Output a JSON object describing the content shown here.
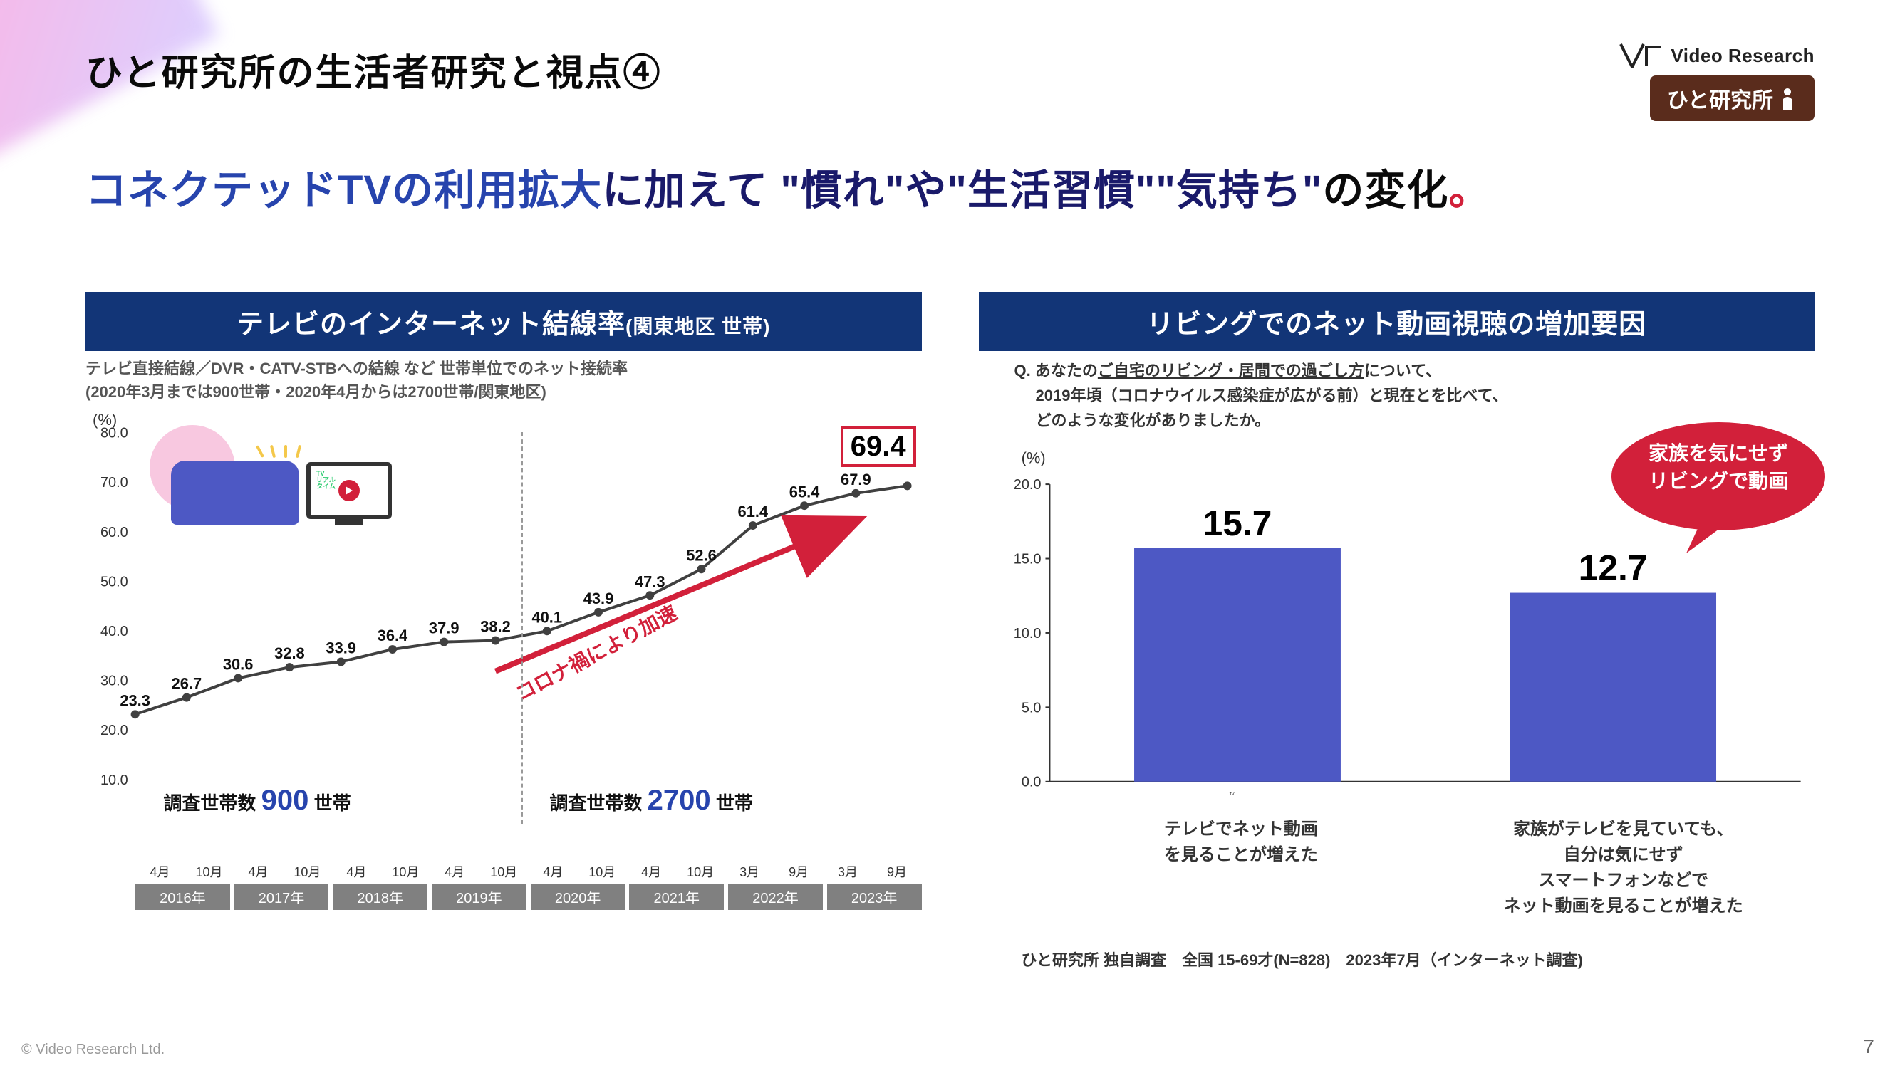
{
  "header": {
    "title": "ひと研究所の生活者研究と視点④",
    "vr_text": "Video Research",
    "hito_badge": "ひと研究所"
  },
  "headline": {
    "part1_blue": "コネクテッドTVの利用拡大",
    "part2_dark": "に加えて ",
    "quote1": "\"慣れ\"",
    "ya": "や",
    "quote2": "\"生活習慣\"",
    "quote3": "\"気持ち\"",
    "trail": "の変化",
    "period": "。"
  },
  "left": {
    "header_main": "テレビのインターネット結線率",
    "header_small": "(関東地区 世帯)",
    "subtitle_1": "テレビ直接結線／DVR・CATV-STBへの結線 など 世帯単位でのネット接続率",
    "subtitle_2": "(2020年3月までは900世帯・2020年4月からは2700世帯/関東地区)",
    "chart": {
      "type": "line",
      "y_axis_label": "(%)",
      "y_ticks": [
        10.0,
        20.0,
        30.0,
        40.0,
        50.0,
        60.0,
        70.0,
        80.0
      ],
      "ylim": [
        10.0,
        80.0
      ],
      "x_months": [
        "4月",
        "10月",
        "4月",
        "10月",
        "4月",
        "10月",
        "4月",
        "10月",
        "4月",
        "10月",
        "4月",
        "10月",
        "3月",
        "9月",
        "3月",
        "9月"
      ],
      "years": [
        "2016年",
        "2017年",
        "2018年",
        "2019年",
        "2020年",
        "2021年",
        "2022年",
        "2023年"
      ],
      "values": [
        23.3,
        26.7,
        30.6,
        32.8,
        33.9,
        36.4,
        37.9,
        38.2,
        40.1,
        43.9,
        47.3,
        52.6,
        61.4,
        65.4,
        67.9,
        69.4
      ],
      "line_color": "#404040",
      "marker_color": "#404040",
      "final_highlight": "69.4",
      "final_box_color": "#d2203a",
      "arrow_color": "#d2203a",
      "arrow_label": "コロナ禍により加速",
      "survey_pre_label_prefix": "調査世帯数 ",
      "survey_pre_num": "900",
      "survey_post_num": "2700",
      "survey_suffix": " 世帯",
      "divider_index": 8,
      "tv_inner_label": "TV\nリアル\nタイム",
      "background": "#ffffff",
      "value_fontsize": 22
    }
  },
  "right": {
    "header_main": "リビングでのネット動画視聴の増加要因",
    "question_prefix": "Q. あなたの",
    "question_underline": "ご自宅のリビング・居間での過ごし方",
    "question_rest_1": "について、",
    "question_line2": "2019年頃（コロナウイルス感染症が広がる前）と現在とを比べて、",
    "question_line3": "どのような変化がありましたか。",
    "chart": {
      "type": "bar",
      "y_axis_label": "(%)",
      "y_ticks": [
        0.0,
        5.0,
        10.0,
        15.0,
        20.0
      ],
      "ylim": [
        0.0,
        20.0
      ],
      "bars": [
        {
          "value": 15.7,
          "label_line1": "テレビでネット動画",
          "label_line2": "を見ることが増えた"
        },
        {
          "value": 12.7,
          "label_line1": "家族がテレビを見ていても、",
          "label_line2": "自分は気にせず",
          "label_line3": "スマートフォンなどで",
          "label_line4": "ネット動画を見ることが増えた"
        }
      ],
      "bar_color": "#4d58c4",
      "bar_width": 0.55,
      "value_fontsize": 50,
      "background": "#ffffff",
      "tick_color": "#333333"
    },
    "callout_line1": "家族を気にせず",
    "callout_line2": "リビングで動画",
    "callout_color": "#d2203a",
    "footnote": "ひと研究所 独自調査　全国 15-69才(N=828)　2023年7月（インターネット調査)"
  },
  "footer": {
    "copyright": "© Video Research Ltd.",
    "page_number": "7"
  },
  "colors": {
    "deep_navy": "#123577",
    "accent_blue": "#2744ad",
    "dark_navy": "#1a1a6a",
    "red": "#d2203a",
    "bar_fill": "#4d58c4",
    "year_cell": "#808080"
  }
}
